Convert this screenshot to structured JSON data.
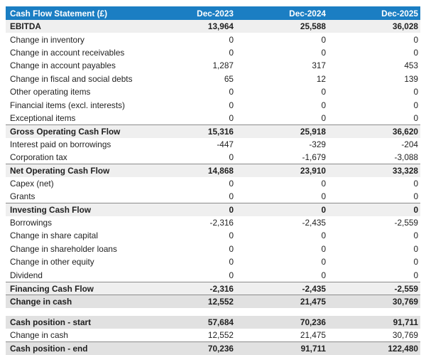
{
  "accent_color": "#1b7ec3",
  "text_color": "#1f1f1f",
  "subtotal_bg": "#efefef",
  "result_bg": "#e1e1e1",
  "table": {
    "title": "Cash Flow Statement (£)",
    "columns": [
      "Dec-2023",
      "Dec-2024",
      "Dec-2025"
    ],
    "sections": [
      {
        "rows": [
          {
            "label": "EBITDA",
            "values": [
              "13,964",
              "25,588",
              "36,028"
            ],
            "kind": "subtotal",
            "border_top": false
          },
          {
            "label": "Change in inventory",
            "values": [
              "0",
              "0",
              "0"
            ],
            "kind": "item",
            "border_top": false
          },
          {
            "label": "Change in account receivables",
            "values": [
              "0",
              "0",
              "0"
            ],
            "kind": "item",
            "border_top": false
          },
          {
            "label": "Change in account payables",
            "values": [
              "1,287",
              "317",
              "453"
            ],
            "kind": "item",
            "border_top": false
          },
          {
            "label": "Change in fiscal and social debts",
            "values": [
              "65",
              "12",
              "139"
            ],
            "kind": "item",
            "border_top": false
          },
          {
            "label": "Other operating items",
            "values": [
              "0",
              "0",
              "0"
            ],
            "kind": "item",
            "border_top": false
          },
          {
            "label": "Financial items (excl. interests)",
            "values": [
              "0",
              "0",
              "0"
            ],
            "kind": "item",
            "border_top": false
          },
          {
            "label": "Exceptional items",
            "values": [
              "0",
              "0",
              "0"
            ],
            "kind": "item",
            "border_top": false
          },
          {
            "label": "Gross Operating Cash Flow",
            "values": [
              "15,316",
              "25,918",
              "36,620"
            ],
            "kind": "subtotal",
            "border_top": true
          },
          {
            "label": "Interest paid on borrowings",
            "values": [
              "-447",
              "-329",
              "-204"
            ],
            "kind": "item",
            "border_top": false
          },
          {
            "label": "Corporation tax",
            "values": [
              "0",
              "-1,679",
              "-3,088"
            ],
            "kind": "item",
            "border_top": false
          },
          {
            "label": "Net Operating Cash Flow",
            "values": [
              "14,868",
              "23,910",
              "33,328"
            ],
            "kind": "subtotal",
            "border_top": true
          },
          {
            "label": "Capex (net)",
            "values": [
              "0",
              "0",
              "0"
            ],
            "kind": "item",
            "border_top": false
          },
          {
            "label": "Grants",
            "values": [
              "0",
              "0",
              "0"
            ],
            "kind": "item",
            "border_top": false
          },
          {
            "label": "Investing Cash Flow",
            "values": [
              "0",
              "0",
              "0"
            ],
            "kind": "subtotal",
            "border_top": true
          },
          {
            "label": "Borrowings",
            "values": [
              "-2,316",
              "-2,435",
              "-2,559"
            ],
            "kind": "item",
            "border_top": false
          },
          {
            "label": "Change in share capital",
            "values": [
              "0",
              "0",
              "0"
            ],
            "kind": "item",
            "border_top": false
          },
          {
            "label": "Change in shareholder loans",
            "values": [
              "0",
              "0",
              "0"
            ],
            "kind": "item",
            "border_top": false
          },
          {
            "label": "Change in other equity",
            "values": [
              "0",
              "0",
              "0"
            ],
            "kind": "item",
            "border_top": false
          },
          {
            "label": "Dividend",
            "values": [
              "0",
              "0",
              "0"
            ],
            "kind": "item",
            "border_top": false
          },
          {
            "label": "Financing Cash Flow",
            "values": [
              "-2,316",
              "-2,435",
              "-2,559"
            ],
            "kind": "subtotal",
            "border_top": true
          },
          {
            "label": "Change in cash",
            "values": [
              "12,552",
              "21,475",
              "30,769"
            ],
            "kind": "result",
            "border_top": true
          }
        ]
      },
      {
        "rows": [
          {
            "label": "Cash position - start",
            "values": [
              "57,684",
              "70,236",
              "91,711"
            ],
            "kind": "result",
            "border_top": false
          },
          {
            "label": "Change in cash",
            "values": [
              "12,552",
              "21,475",
              "30,769"
            ],
            "kind": "item",
            "border_top": false
          },
          {
            "label": "Cash position - end",
            "values": [
              "70,236",
              "91,711",
              "122,480"
            ],
            "kind": "result",
            "border_top": true
          }
        ]
      }
    ]
  },
  "chart_data": {
    "type": "table",
    "title": "Cash Flow Statement (£)",
    "columns": [
      "Dec-2023",
      "Dec-2024",
      "Dec-2025"
    ],
    "rows": [
      {
        "label": "EBITDA",
        "values": [
          13964,
          25588,
          36028
        ]
      },
      {
        "label": "Change in inventory",
        "values": [
          0,
          0,
          0
        ]
      },
      {
        "label": "Change in account receivables",
        "values": [
          0,
          0,
          0
        ]
      },
      {
        "label": "Change in account payables",
        "values": [
          1287,
          317,
          453
        ]
      },
      {
        "label": "Change in fiscal and social debts",
        "values": [
          65,
          12,
          139
        ]
      },
      {
        "label": "Other operating items",
        "values": [
          0,
          0,
          0
        ]
      },
      {
        "label": "Financial items (excl. interests)",
        "values": [
          0,
          0,
          0
        ]
      },
      {
        "label": "Exceptional items",
        "values": [
          0,
          0,
          0
        ]
      },
      {
        "label": "Gross Operating Cash Flow",
        "values": [
          15316,
          25918,
          36620
        ]
      },
      {
        "label": "Interest paid on borrowings",
        "values": [
          -447,
          -329,
          -204
        ]
      },
      {
        "label": "Corporation tax",
        "values": [
          0,
          -1679,
          -3088
        ]
      },
      {
        "label": "Net Operating Cash Flow",
        "values": [
          14868,
          23910,
          33328
        ]
      },
      {
        "label": "Capex (net)",
        "values": [
          0,
          0,
          0
        ]
      },
      {
        "label": "Grants",
        "values": [
          0,
          0,
          0
        ]
      },
      {
        "label": "Investing Cash Flow",
        "values": [
          0,
          0,
          0
        ]
      },
      {
        "label": "Borrowings",
        "values": [
          -2316,
          -2435,
          -2559
        ]
      },
      {
        "label": "Change in share capital",
        "values": [
          0,
          0,
          0
        ]
      },
      {
        "label": "Change in shareholder loans",
        "values": [
          0,
          0,
          0
        ]
      },
      {
        "label": "Change in other equity",
        "values": [
          0,
          0,
          0
        ]
      },
      {
        "label": "Dividend",
        "values": [
          0,
          0,
          0
        ]
      },
      {
        "label": "Financing Cash Flow",
        "values": [
          -2316,
          -2435,
          -2559
        ]
      },
      {
        "label": "Change in cash",
        "values": [
          12552,
          21475,
          30769
        ]
      },
      {
        "label": "Cash position - start",
        "values": [
          57684,
          70236,
          91711
        ]
      },
      {
        "label": "Change in cash",
        "values": [
          12552,
          21475,
          30769
        ]
      },
      {
        "label": "Cash position - end",
        "values": [
          70236,
          91711,
          122480
        ]
      }
    ]
  }
}
